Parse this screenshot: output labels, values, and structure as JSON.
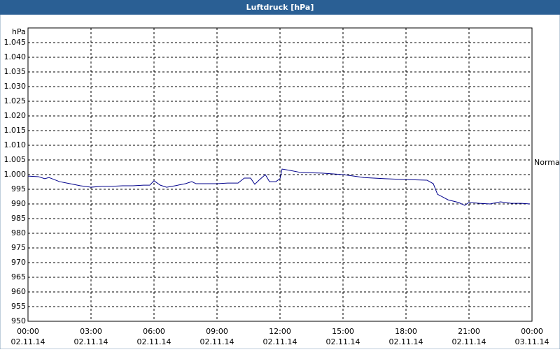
{
  "chart_data": {
    "type": "line",
    "title": "Luftdruck [hPa]",
    "y_unit": "hPa",
    "color": "#00008b",
    "grid": true,
    "annotation": {
      "text": "Normal",
      "value": 1004
    },
    "xlim": [
      0,
      24
    ],
    "xticks": [
      {
        "value": 0,
        "label": "00:00",
        "date": "02.11.14"
      },
      {
        "value": 3,
        "label": "03:00",
        "date": "02.11.14"
      },
      {
        "value": 6,
        "label": "06:00",
        "date": "02.11.14"
      },
      {
        "value": 9,
        "label": "09:00",
        "date": "02.11.14"
      },
      {
        "value": 12,
        "label": "12:00",
        "date": "02.11.14"
      },
      {
        "value": 15,
        "label": "15:00",
        "date": "02.11.14"
      },
      {
        "value": 18,
        "label": "18:00",
        "date": "02.11.14"
      },
      {
        "value": 21,
        "label": "21:00",
        "date": "02.11.14"
      },
      {
        "value": 24,
        "label": "00:00",
        "date": "03.11.14"
      }
    ],
    "ylim": [
      950,
      1050
    ],
    "yticks": [
      950,
      955,
      960,
      965,
      970,
      975,
      980,
      985,
      990,
      995,
      {
        "value": 1000,
        "label": "1.000"
      },
      {
        "value": 1005,
        "label": "1.005"
      },
      {
        "value": 1010,
        "label": "1.010"
      },
      {
        "value": 1015,
        "label": "1.015"
      },
      {
        "value": 1020,
        "label": "1.020"
      },
      {
        "value": 1025,
        "label": "1.025"
      },
      {
        "value": 1030,
        "label": "1.030"
      },
      {
        "value": 1035,
        "label": "1.035"
      },
      {
        "value": 1040,
        "label": "1.040"
      },
      {
        "value": 1045,
        "label": "1.045"
      }
    ],
    "x": [
      0,
      0.5,
      0.8,
      1,
      1.5,
      2,
      2.5,
      3,
      3.5,
      4,
      4.5,
      5,
      5.5,
      5.8,
      6,
      6.3,
      6.6,
      7,
      7.5,
      7.8,
      8,
      9,
      9.5,
      10,
      10.3,
      10.6,
      10.8,
      11,
      11.3,
      11.5,
      11.8,
      12,
      12.1,
      12.5,
      13,
      14,
      15,
      16,
      17,
      18,
      19,
      19.3,
      19.5,
      20,
      20.5,
      20.8,
      21,
      21.5,
      22,
      22.5,
      23,
      23.5,
      23.9
    ],
    "values": [
      999.5,
      999.3,
      998.6,
      999,
      997.6,
      996.9,
      996.2,
      995.7,
      996,
      996,
      996.2,
      996.2,
      996.4,
      996.4,
      997.9,
      996.4,
      995.7,
      996.2,
      996.9,
      997.6,
      996.9,
      996.9,
      997.1,
      997.1,
      998.8,
      998.8,
      996.7,
      998.1,
      1000,
      997.6,
      997.6,
      998.6,
      1001.9,
      1001.4,
      1000.7,
      1000.5,
      1000,
      999,
      998.6,
      998.3,
      998.1,
      996.9,
      993.3,
      991.4,
      990.5,
      989.5,
      990.5,
      990.2,
      990,
      990.7,
      990.2,
      990.2,
      990
    ]
  }
}
